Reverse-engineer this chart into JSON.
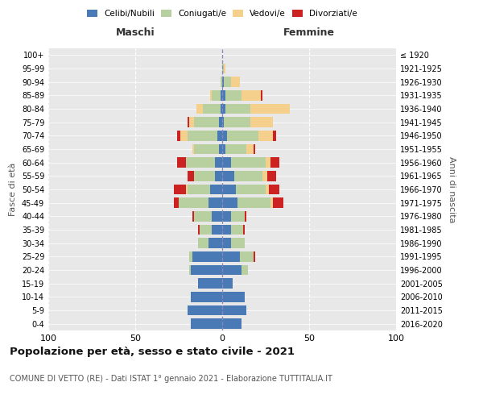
{
  "age_groups": [
    "0-4",
    "5-9",
    "10-14",
    "15-19",
    "20-24",
    "25-29",
    "30-34",
    "35-39",
    "40-44",
    "45-49",
    "50-54",
    "55-59",
    "60-64",
    "65-69",
    "70-74",
    "75-79",
    "80-84",
    "85-89",
    "90-94",
    "95-99",
    "100+"
  ],
  "birth_years": [
    "2016-2020",
    "2011-2015",
    "2006-2010",
    "2001-2005",
    "1996-2000",
    "1991-1995",
    "1986-1990",
    "1981-1985",
    "1976-1980",
    "1971-1975",
    "1966-1970",
    "1961-1965",
    "1956-1960",
    "1951-1955",
    "1946-1950",
    "1941-1945",
    "1936-1940",
    "1931-1935",
    "1926-1930",
    "1921-1925",
    "≤ 1920"
  ],
  "colors": {
    "celibi": "#4a7ab5",
    "coniugati": "#b8cfa0",
    "vedovi": "#f5d08c",
    "divorziati": "#cc2222"
  },
  "maschi": {
    "celibi": [
      18,
      20,
      18,
      14,
      18,
      17,
      8,
      6,
      6,
      8,
      7,
      4,
      4,
      2,
      3,
      2,
      1,
      1,
      0,
      0,
      0
    ],
    "coniugati": [
      0,
      0,
      0,
      0,
      1,
      2,
      6,
      7,
      10,
      17,
      13,
      12,
      17,
      14,
      17,
      14,
      10,
      5,
      1,
      0,
      0
    ],
    "vedovi": [
      0,
      0,
      0,
      0,
      0,
      0,
      0,
      0,
      0,
      0,
      1,
      0,
      0,
      1,
      4,
      3,
      4,
      1,
      0,
      0,
      0
    ],
    "divorziati": [
      0,
      0,
      0,
      0,
      0,
      0,
      0,
      1,
      1,
      3,
      7,
      4,
      5,
      0,
      2,
      1,
      0,
      0,
      0,
      0,
      0
    ]
  },
  "femmine": {
    "celibi": [
      11,
      14,
      13,
      6,
      11,
      10,
      5,
      5,
      5,
      9,
      8,
      7,
      5,
      2,
      3,
      1,
      2,
      2,
      1,
      0,
      0
    ],
    "coniugati": [
      0,
      0,
      0,
      0,
      4,
      8,
      8,
      7,
      8,
      19,
      17,
      16,
      20,
      12,
      18,
      15,
      14,
      9,
      4,
      1,
      0
    ],
    "vedovi": [
      0,
      0,
      0,
      0,
      0,
      0,
      0,
      0,
      0,
      1,
      2,
      3,
      3,
      4,
      8,
      13,
      23,
      11,
      5,
      1,
      0
    ],
    "divorziati": [
      0,
      0,
      0,
      0,
      0,
      1,
      0,
      1,
      1,
      6,
      6,
      5,
      5,
      1,
      2,
      0,
      0,
      1,
      0,
      0,
      0
    ]
  },
  "xlim": 100,
  "title": "Popolazione per età, sesso e stato civile - 2021",
  "subtitle": "COMUNE DI VETTO (RE) - Dati ISTAT 1° gennaio 2021 - Elaborazione TUTTITALIA.IT",
  "ylabel_left": "Fasce di età",
  "ylabel_right": "Anni di nascita",
  "xlabel_maschi": "Maschi",
  "xlabel_femmine": "Femmine",
  "legend_labels": [
    "Celibi/Nubili",
    "Coniugati/e",
    "Vedovi/e",
    "Divorziati/e"
  ],
  "background_color": "#f0f0f0",
  "plot_bg": "#e8e8e8"
}
